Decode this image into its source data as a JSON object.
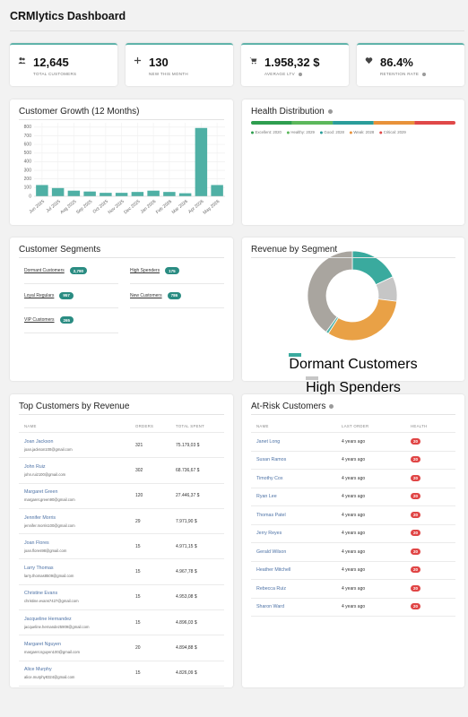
{
  "header": {
    "title": "CRMlytics Dashboard"
  },
  "kpis": [
    {
      "value": "12,645",
      "label": "TOTAL CUSTOMERS"
    },
    {
      "value": "130",
      "label": "NEW THIS MONTH"
    },
    {
      "value": "1.958,32 $",
      "label": "AVERAGE LTV"
    },
    {
      "value": "86.4%",
      "label": "RETENTION RATE"
    }
  ],
  "chart_data": [
    {
      "type": "bar",
      "title": "Customer Growth (12 Months)",
      "categories": [
        "Jun 2025",
        "Jul 2025",
        "Aug 2025",
        "Sep 2025",
        "Oct 2025",
        "Nov 2025",
        "Dec 2025",
        "Jan 2026",
        "Feb 2026",
        "Mar 2026",
        "Apr 2026",
        "May 2026"
      ],
      "values": [
        130,
        95,
        65,
        55,
        40,
        40,
        50,
        65,
        50,
        35,
        790,
        130
      ],
      "color": "#4fb0a5",
      "ylim": [
        0,
        850
      ],
      "yticks": [
        0,
        100,
        200,
        300,
        400,
        500,
        600,
        700,
        800
      ],
      "grid": true
    },
    {
      "type": "stacked-bar",
      "title": "Health Distribution",
      "values": [
        2020,
        2029,
        2028,
        2028,
        2029
      ],
      "value_labels": [
        "Excellent: 2020",
        "Healthy: 2029",
        "Good: 2028",
        "Weak: 2028",
        "Critical: 2029"
      ],
      "colors": [
        "#2e9e4f",
        "#5cb85c",
        "#2a9d9a",
        "#e8923a",
        "#e04848"
      ]
    },
    {
      "type": "donut",
      "title": "Revenue by Segment",
      "categories": [
        "Dormant Customers",
        "High Spenders",
        "Loyal Regulars",
        "New Customers",
        "VIP Customers"
      ],
      "values": [
        18,
        9,
        32,
        1,
        40
      ],
      "colors": [
        "#3aaa9e",
        "#c6c6c6",
        "#e9a146",
        "#52b3a8",
        "#a9a59f"
      ]
    }
  ],
  "segments": {
    "title": "Customer Segments",
    "items": [
      {
        "name": "Dormant Customers",
        "count": "2,790"
      },
      {
        "name": "High Spenders",
        "count": "175"
      },
      {
        "name": "Loyal Regulars",
        "count": "957"
      },
      {
        "name": "New Customers",
        "count": "786"
      },
      {
        "name": "VIP Customers",
        "count": "265"
      }
    ]
  },
  "top_customers": {
    "title": "Top Customers by Revenue",
    "columns": [
      "NAME",
      "ORDERS",
      "TOTAL SPENT"
    ],
    "rows": [
      [
        "Joan Jackson",
        "joan.jackson100@gmail.com",
        "321",
        "75.179,03 $"
      ],
      [
        "John Ruiz",
        "john.ruiz100@gmail.com",
        "302",
        "68.736,67 $"
      ],
      [
        "Margaret Green",
        "margaret.green90@gmail.com",
        "120",
        "27.446,37 $"
      ],
      [
        "Jennifer Morris",
        "jennifer.morris100@gmail.com",
        "29",
        "7.971,90 $"
      ],
      [
        "Joan Flores",
        "joan.flores98@gmail.com",
        "15",
        "4.971,15 $"
      ],
      [
        "Larry Thomas",
        "larry.thomas8509@gmail.com",
        "15",
        "4.967,78 $"
      ],
      [
        "Christine Evans",
        "christine.evans7427@gmail.com",
        "15",
        "4.953,08 $"
      ],
      [
        "Jacqueline Hernandez",
        "jacqueline.hernandez5909@gmail.com",
        "15",
        "4.896,03 $"
      ],
      [
        "Margaret Nguyen",
        "margaret.nguyen100@gmail.com",
        "20",
        "4.894,88 $"
      ],
      [
        "Alice Murphy",
        "alice.murphy8324@gmail.com",
        "15",
        "4.826,09 $"
      ]
    ]
  },
  "at_risk": {
    "title": "At-Risk Customers",
    "columns": [
      "NAME",
      "LAST ORDER",
      "HEALTH"
    ],
    "rows": [
      [
        "Janet Long",
        "4 years ago",
        "20"
      ],
      [
        "Susan Ramos",
        "4 years ago",
        "20"
      ],
      [
        "Timothy Cox",
        "4 years ago",
        "20"
      ],
      [
        "Ryan Lee",
        "4 years ago",
        "20"
      ],
      [
        "Thomas Patel",
        "4 years ago",
        "20"
      ],
      [
        "Jerry Reyes",
        "4 years ago",
        "20"
      ],
      [
        "Gerald Wilson",
        "4 years ago",
        "20"
      ],
      [
        "Heather Mitchell",
        "4 years ago",
        "20"
      ],
      [
        "Rebecca Ruiz",
        "4 years ago",
        "20"
      ],
      [
        "Sharon Ward",
        "4 years ago",
        "20"
      ]
    ]
  }
}
